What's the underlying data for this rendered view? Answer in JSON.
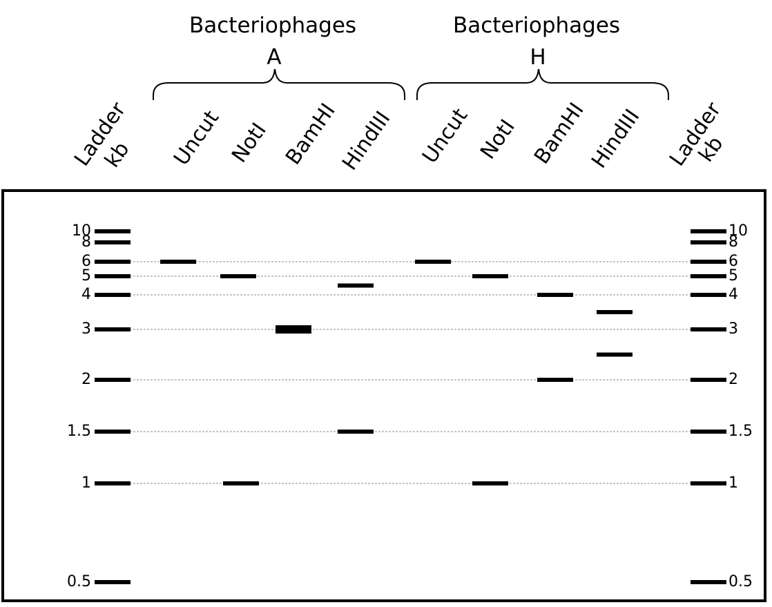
{
  "groups": [
    {
      "title": "Bacteriophages",
      "letter": "A"
    },
    {
      "title": "Bacteriophages",
      "letter": "H"
    }
  ],
  "ladder_left": {
    "line1": "Ladder",
    "line2": "kb"
  },
  "ladder_right": {
    "line1": "Ladder",
    "line2": "kb"
  },
  "lanes": [
    "Uncut",
    "NotI",
    "BamHI",
    "HindIII",
    "Uncut",
    "NotI",
    "BamHI",
    "HindIII"
  ],
  "ladder_sizes": [
    "10",
    "8",
    "6",
    "5",
    "4",
    "3",
    "2",
    "1.5",
    "1",
    "0.5"
  ],
  "bands": [
    {
      "lane": 0,
      "sizes": [
        6
      ]
    },
    {
      "lane": 1,
      "sizes": [
        5,
        1
      ]
    },
    {
      "lane": 2,
      "sizes": [
        3
      ],
      "thick": true
    },
    {
      "lane": 3,
      "sizes": [
        4.5,
        1.5
      ]
    },
    {
      "lane": 4,
      "sizes": [
        6
      ]
    },
    {
      "lane": 5,
      "sizes": [
        5,
        1
      ]
    },
    {
      "lane": 6,
      "sizes": [
        4,
        2
      ]
    },
    {
      "lane": 7,
      "sizes": [
        3.5,
        2.5
      ]
    }
  ],
  "guide_sizes": [
    6,
    5,
    4,
    3,
    2,
    1.5,
    1
  ],
  "colors": {
    "band": "#000000",
    "guide": "#8a8a8a"
  }
}
